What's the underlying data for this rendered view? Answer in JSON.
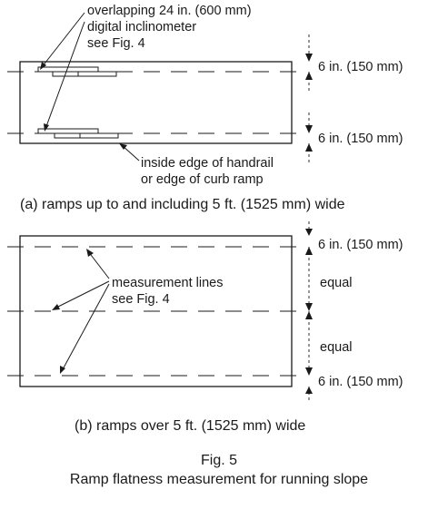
{
  "figure": {
    "number": "Fig. 5",
    "title": "Ramp flatness measurement for running slope"
  },
  "panel_a": {
    "caption": "(a) ramps up to and including 5 ft. (1525 mm) wide",
    "inclinometer_callout": [
      "overlapping 24 in. (600 mm)",
      "digital inclinometer",
      "see Fig. 4"
    ],
    "edge_callout": [
      "inside edge of handrail",
      "or edge of curb ramp"
    ],
    "dim_top": "6 in. (150 mm)",
    "dim_bottom": "6 in. (150 mm)"
  },
  "panel_b": {
    "caption": "(b) ramps over 5 ft. (1525 mm) wide",
    "measurement_callout": [
      "measurement lines",
      "see Fig. 4"
    ],
    "dim_top": "6 in. (150 mm)",
    "dim_equal_1": "equal",
    "dim_equal_2": "equal",
    "dim_bottom": "6 in. (150 mm)"
  }
}
